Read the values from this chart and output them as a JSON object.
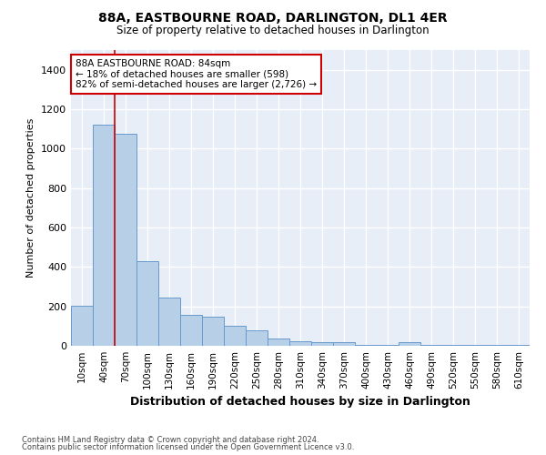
{
  "title": "88A, EASTBOURNE ROAD, DARLINGTON, DL1 4ER",
  "subtitle": "Size of property relative to detached houses in Darlington",
  "xlabel": "Distribution of detached houses by size in Darlington",
  "ylabel": "Number of detached properties",
  "bar_color": "#b8cfe8",
  "bar_edge_color": "#6699cc",
  "background_color": "#e8eef8",
  "grid_color": "#ffffff",
  "categories": [
    "10sqm",
    "40sqm",
    "70sqm",
    "100sqm",
    "130sqm",
    "160sqm",
    "190sqm",
    "220sqm",
    "250sqm",
    "280sqm",
    "310sqm",
    "340sqm",
    "370sqm",
    "400sqm",
    "430sqm",
    "460sqm",
    "490sqm",
    "520sqm",
    "550sqm",
    "580sqm",
    "610sqm"
  ],
  "values": [
    205,
    1120,
    1075,
    430,
    245,
    155,
    150,
    100,
    80,
    35,
    25,
    18,
    18,
    5,
    5,
    18,
    5,
    5,
    5,
    5,
    5
  ],
  "ylim": [
    0,
    1500
  ],
  "yticks": [
    0,
    200,
    400,
    600,
    800,
    1000,
    1200,
    1400
  ],
  "property_line_x": 1.5,
  "annotation_text": "88A EASTBOURNE ROAD: 84sqm\n← 18% of detached houses are smaller (598)\n82% of semi-detached houses are larger (2,726) →",
  "annotation_box_color": "#ffffff",
  "annotation_box_edge_color": "#cc0000",
  "footer_line1": "Contains HM Land Registry data © Crown copyright and database right 2024.",
  "footer_line2": "Contains public sector information licensed under the Open Government Licence v3.0."
}
